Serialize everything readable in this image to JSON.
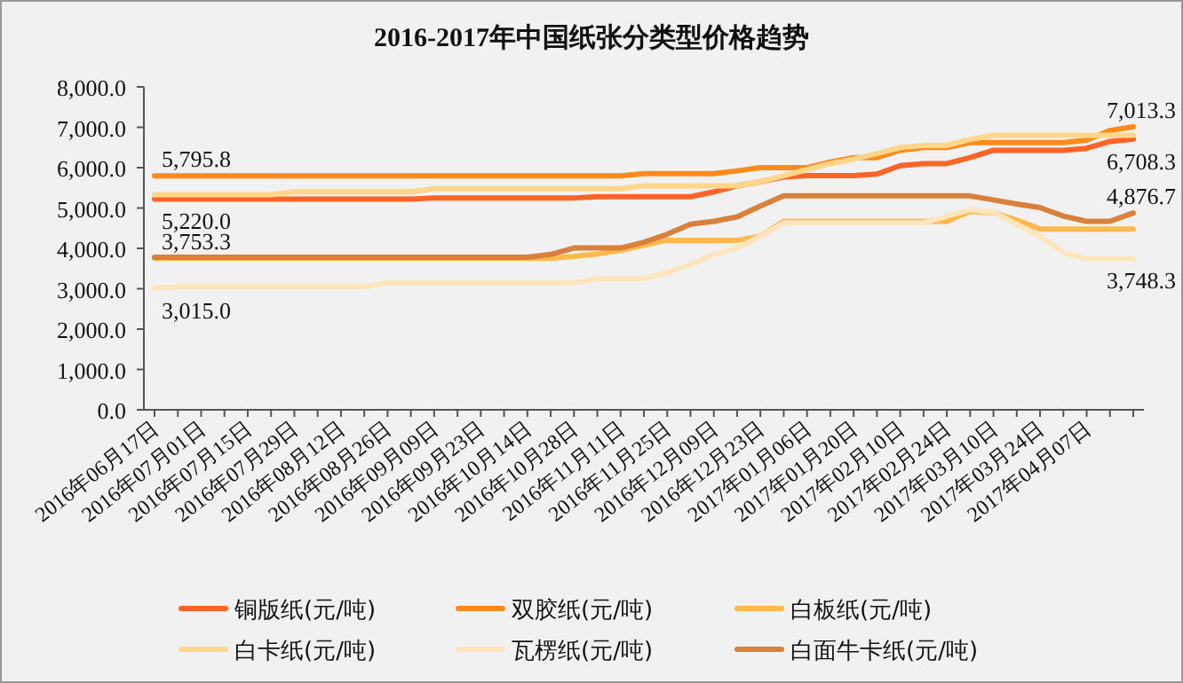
{
  "chart_data": {
    "type": "line",
    "title": "2016-2017年中国纸张分类型价格趋势",
    "categories": [
      "2016年06月17日",
      null,
      "2016年07月01日",
      null,
      "2016年07月15日",
      null,
      "2016年07月29日",
      null,
      "2016年08月12日",
      null,
      "2016年08月26日",
      null,
      "2016年09月09日",
      null,
      "2016年09月23日",
      null,
      "2016年10月14日",
      null,
      "2016年10月28日",
      null,
      "2016年11月11日",
      null,
      "2016年11月25日",
      null,
      "2016年12月09日",
      null,
      "2016年12月23日",
      null,
      "2017年01月06日",
      null,
      "2017年01月20日",
      null,
      "2017年02月10日",
      null,
      "2017年02月24日",
      null,
      "2017年03月10日",
      null,
      "2017年03月24日",
      null,
      "2017年04月07日",
      null,
      null
    ],
    "ylim": [
      0,
      8000
    ],
    "yticks": [
      {
        "value": 0,
        "label": "0.0"
      },
      {
        "value": 1000,
        "label": "1,000.0"
      },
      {
        "value": 2000,
        "label": "2,000.0"
      },
      {
        "value": 3000,
        "label": "3,000.0"
      },
      {
        "value": 4000,
        "label": "4,000.0"
      },
      {
        "value": 5000,
        "label": "5,000.0"
      },
      {
        "value": 6000,
        "label": "6,000.0"
      },
      {
        "value": 7000,
        "label": "7,000.0"
      },
      {
        "value": 8000,
        "label": "8,000.0"
      }
    ],
    "legend": "bottom",
    "series": [
      {
        "name": "铜版纸(元/吨)",
        "color": "#ff6326",
        "values": [
          5220,
          5220,
          5220,
          5220,
          5220,
          5220,
          5220,
          5220,
          5220,
          5220,
          5220,
          5220,
          5250,
          5250,
          5250,
          5250,
          5250,
          5250,
          5250,
          5280,
          5280,
          5280,
          5280,
          5280,
          5400,
          5550,
          5650,
          5770,
          5800,
          5800,
          5800,
          5840,
          6050,
          6100,
          6100,
          6250,
          6430,
          6430,
          6430,
          6430,
          6480,
          6650,
          6708.3
        ],
        "value_labels": [
          "5,220.0",
          null,
          null,
          null,
          null,
          null,
          null,
          null,
          null,
          null,
          null,
          null,
          null,
          null,
          null,
          null,
          null,
          null,
          null,
          null,
          null,
          null,
          null,
          null,
          null,
          null,
          null,
          null,
          null,
          null,
          null,
          null,
          null,
          null,
          null,
          null,
          null,
          null,
          null,
          null,
          null,
          null,
          "6,708.3"
        ]
      },
      {
        "name": "双胶纸(元/吨)",
        "color": "#ff8a1c",
        "values": [
          5795.8,
          5795.8,
          5795.8,
          5795.8,
          5795.8,
          5795.8,
          5795.8,
          5795.8,
          5795.8,
          5795.8,
          5795.8,
          5795.8,
          5795.8,
          5795.8,
          5795.8,
          5795.8,
          5795.8,
          5795.8,
          5795.8,
          5795.8,
          5795.8,
          5850,
          5850,
          5850,
          5850,
          5920,
          6000,
          6000,
          6000,
          6140,
          6250,
          6250,
          6430,
          6500,
          6500,
          6620,
          6620,
          6620,
          6620,
          6620,
          6680,
          6920,
          7013.3
        ],
        "value_labels": [
          "5,795.8",
          null,
          null,
          null,
          null,
          null,
          null,
          null,
          null,
          null,
          null,
          null,
          null,
          null,
          null,
          null,
          null,
          null,
          null,
          null,
          null,
          null,
          null,
          null,
          null,
          null,
          null,
          null,
          null,
          null,
          null,
          null,
          null,
          null,
          null,
          null,
          null,
          null,
          null,
          null,
          null,
          null,
          "7,013.3"
        ]
      },
      {
        "name": "白板纸(元/吨)",
        "color": "#ffb94a",
        "values": [
          3753.3,
          3753.3,
          3753.3,
          3753.3,
          3753.3,
          3753.3,
          3753.3,
          3753.3,
          3753.3,
          3753.3,
          3753.3,
          3753.3,
          3753.3,
          3753.3,
          3753.3,
          3753.3,
          3753.3,
          3753.3,
          3800,
          3860,
          3950,
          4080,
          4200,
          4200,
          4200,
          4200,
          4300,
          4670,
          4670,
          4670,
          4670,
          4670,
          4670,
          4670,
          4670,
          4920,
          4880,
          4700,
          4480,
          4480,
          4480,
          4480,
          4480
        ],
        "value_labels": [
          "3,753.3",
          null,
          null,
          null,
          null,
          null,
          null,
          null,
          null,
          null,
          null,
          null,
          null,
          null,
          null,
          null,
          null,
          null,
          null,
          null,
          null,
          null,
          null,
          null,
          null,
          null,
          null,
          null,
          null,
          null,
          null,
          null,
          null,
          null,
          null,
          null,
          null,
          null,
          null,
          null,
          null,
          null,
          null
        ]
      },
      {
        "name": "白卡纸(元/吨)",
        "color": "#ffd68a",
        "values": [
          5330,
          5330,
          5330,
          5330,
          5330,
          5330,
          5400,
          5400,
          5400,
          5400,
          5400,
          5400,
          5480,
          5480,
          5480,
          5480,
          5480,
          5480,
          5480,
          5480,
          5480,
          5550,
          5550,
          5550,
          5550,
          5550,
          5650,
          5800,
          5950,
          6100,
          6210,
          6350,
          6500,
          6550,
          6550,
          6700,
          6800,
          6800,
          6800,
          6800,
          6800,
          6800,
          6800
        ]
      },
      {
        "name": "瓦楞纸(元/吨)",
        "color": "#ffe5bd",
        "values": [
          3015,
          3050,
          3050,
          3050,
          3050,
          3050,
          3050,
          3050,
          3050,
          3050,
          3150,
          3150,
          3150,
          3150,
          3150,
          3150,
          3150,
          3150,
          3150,
          3250,
          3250,
          3250,
          3400,
          3600,
          3850,
          4010,
          4300,
          4630,
          4630,
          4630,
          4630,
          4630,
          4630,
          4630,
          4800,
          4960,
          4890,
          4600,
          4300,
          3900,
          3745,
          3745,
          3748.3
        ],
        "value_labels": [
          "3,015.0",
          null,
          null,
          null,
          null,
          null,
          null,
          null,
          null,
          null,
          null,
          null,
          null,
          null,
          null,
          null,
          null,
          null,
          null,
          null,
          null,
          null,
          null,
          null,
          null,
          null,
          null,
          null,
          null,
          null,
          null,
          null,
          null,
          null,
          null,
          null,
          null,
          null,
          null,
          null,
          null,
          null,
          "3,748.3"
        ]
      },
      {
        "name": "白面牛卡纸(元/吨)",
        "color": "#d9803a",
        "values": [
          3780,
          3780,
          3780,
          3780,
          3780,
          3780,
          3780,
          3780,
          3780,
          3780,
          3780,
          3780,
          3780,
          3780,
          3780,
          3780,
          3780,
          3850,
          4010,
          4010,
          4010,
          4150,
          4350,
          4600,
          4670,
          4780,
          5050,
          5300,
          5300,
          5300,
          5300,
          5300,
          5300,
          5300,
          5300,
          5300,
          5200,
          5100,
          5010,
          4800,
          4670,
          4670,
          4876.7
        ],
        "value_labels": [
          null,
          null,
          null,
          null,
          null,
          null,
          null,
          null,
          null,
          null,
          null,
          null,
          null,
          null,
          null,
          null,
          null,
          null,
          null,
          null,
          null,
          null,
          null,
          null,
          null,
          null,
          null,
          null,
          null,
          null,
          null,
          null,
          null,
          null,
          null,
          null,
          null,
          null,
          null,
          null,
          null,
          null,
          "4,876.7"
        ]
      }
    ]
  }
}
